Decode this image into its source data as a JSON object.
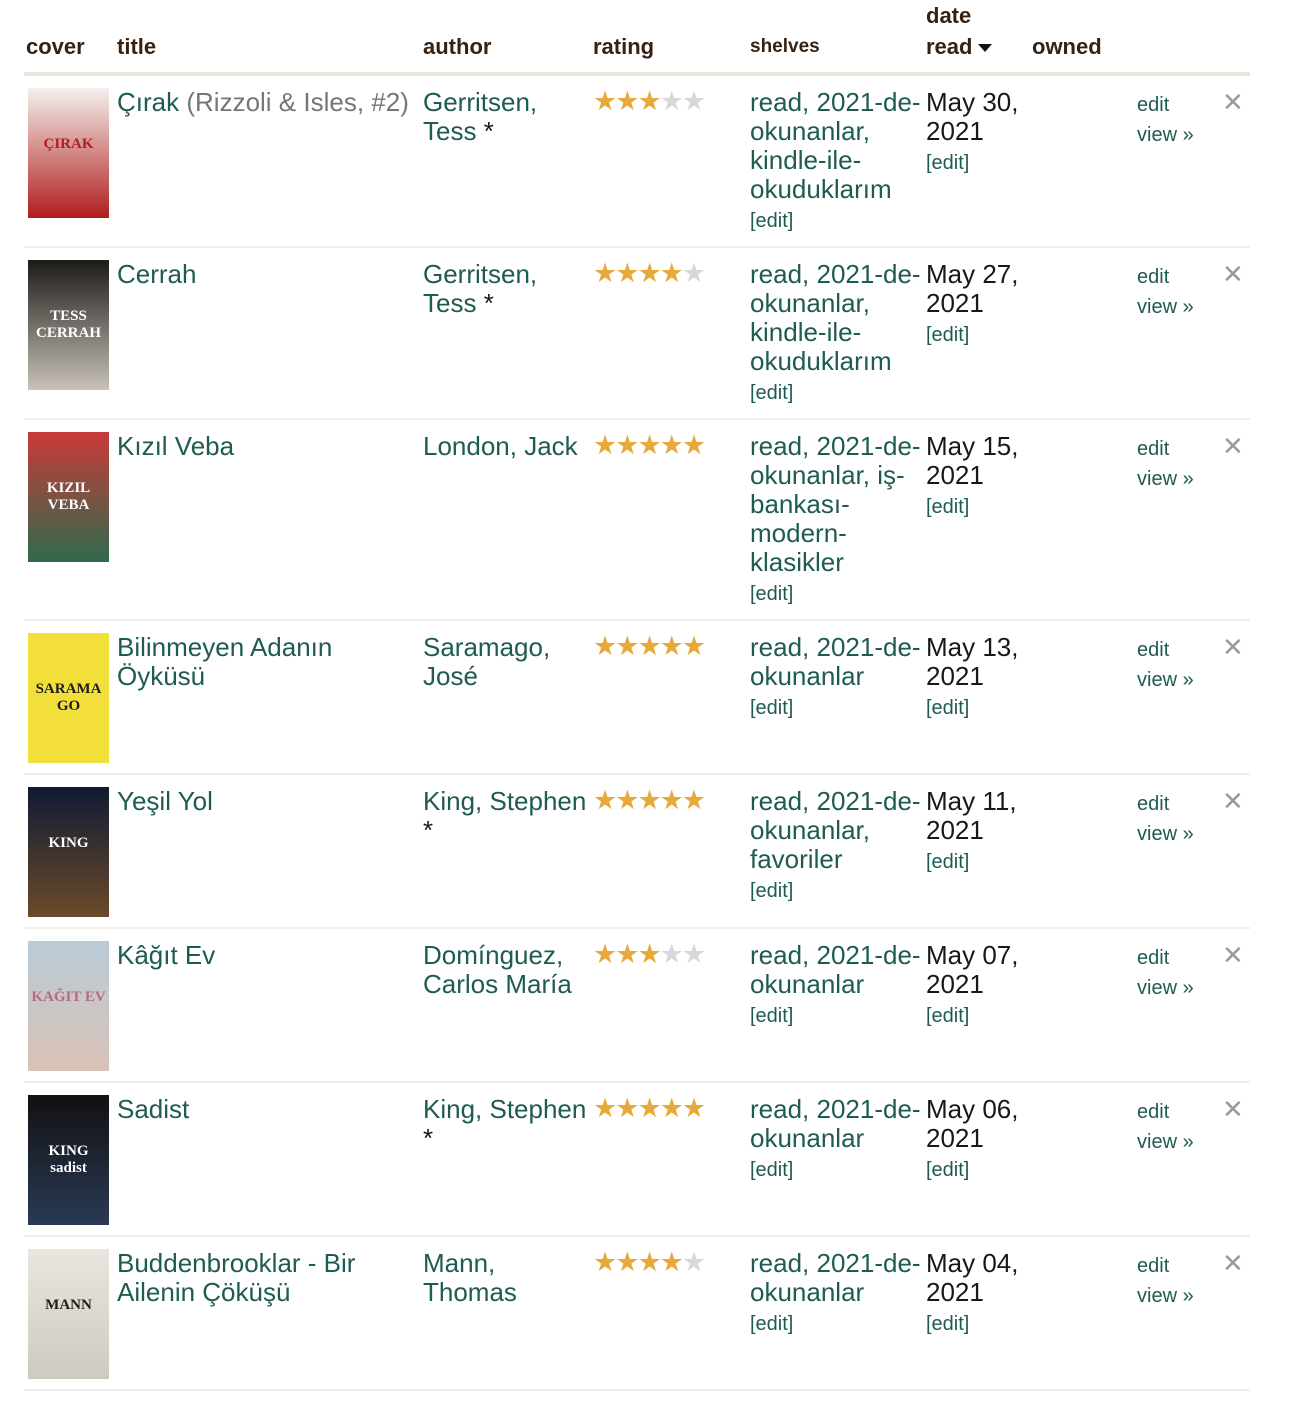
{
  "columns": {
    "cover": "cover",
    "title": "title",
    "author": "author",
    "rating": "rating",
    "shelves": "shelves",
    "date_read_1": "date",
    "date_read_2": "read",
    "owned": "owned"
  },
  "colors": {
    "link": "#1e5b53",
    "header": "#382110",
    "star_on": "#e8a93b",
    "star_off": "#d8d8d8"
  },
  "actions": {
    "edit": "edit",
    "view": "view »",
    "shelf_edit": "[edit]",
    "date_edit": "[edit]"
  },
  "books": [
    {
      "title": "Çırak",
      "series": "(Rizzoli & Isles, #2)",
      "author": "Gerritsen, Tess",
      "author_star": "*",
      "rating": 3,
      "shelves": "read, 2021-de-okunanlar, kindle-ile-okuduklarım",
      "date": "May 30, 2021",
      "cover_colors": [
        "#f4f1ee",
        "#b01d1d"
      ],
      "cover_text": "ÇIRAK"
    },
    {
      "title": "Cerrah",
      "series": "",
      "author": "Gerritsen, Tess",
      "author_star": "*",
      "rating": 4,
      "shelves": "read, 2021-de-okunanlar, kindle-ile-okuduklarım",
      "date": "May 27, 2021",
      "cover_colors": [
        "#1d1b18",
        "#c8c2b8"
      ],
      "cover_text": "TESS CERRAH"
    },
    {
      "title": "Kızıl Veba",
      "series": "",
      "author": "London, Jack",
      "author_star": "",
      "rating": 5,
      "shelves": "read, 2021-de-okunanlar, iş-bankası-modern-klasikler",
      "date": "May 15, 2021",
      "cover_colors": [
        "#c93a3a",
        "#2e6a4c"
      ],
      "cover_text": "KIZIL VEBA"
    },
    {
      "title": "Bilinmeyen Adanın Öyküsü",
      "series": "",
      "author": "Saramago, José",
      "author_star": "",
      "rating": 5,
      "shelves": "read, 2021-de-okunanlar",
      "date": "May 13, 2021",
      "cover_colors": [
        "#f3df3a",
        "#f3df3a"
      ],
      "cover_text": "SARAMAGO"
    },
    {
      "title": "Yeşil Yol",
      "series": "",
      "author": "King, Stephen",
      "author_star": "*",
      "rating": 5,
      "shelves": "read, 2021-de-okunanlar, favoriler",
      "date": "May 11, 2021",
      "cover_colors": [
        "#0f1a33",
        "#6b4a2a"
      ],
      "cover_text": "KING"
    },
    {
      "title": "Kâğıt Ev",
      "series": "",
      "author": "Domínguez, Carlos María",
      "author_star": "",
      "rating": 3,
      "shelves": "read, 2021-de-okunanlar",
      "date": "May 07, 2021",
      "cover_colors": [
        "#b9cbd8",
        "#d9c2b6"
      ],
      "cover_text": "KAĞIT EV"
    },
    {
      "title": "Sadist",
      "series": "",
      "author": "King, Stephen",
      "author_star": "*",
      "rating": 5,
      "shelves": "read, 2021-de-okunanlar",
      "date": "May 06, 2021",
      "cover_colors": [
        "#111111",
        "#2a3a55"
      ],
      "cover_text": "KING sadist"
    },
    {
      "title": "Buddenbrooklar - Bir Ailenin Çöküşü",
      "series": "",
      "author": "Mann, Thomas",
      "author_star": "",
      "rating": 4,
      "shelves": "read, 2021-de-okunanlar",
      "date": "May 04, 2021",
      "cover_colors": [
        "#e9e6df",
        "#cfcac0"
      ],
      "cover_text": "MANN"
    }
  ]
}
